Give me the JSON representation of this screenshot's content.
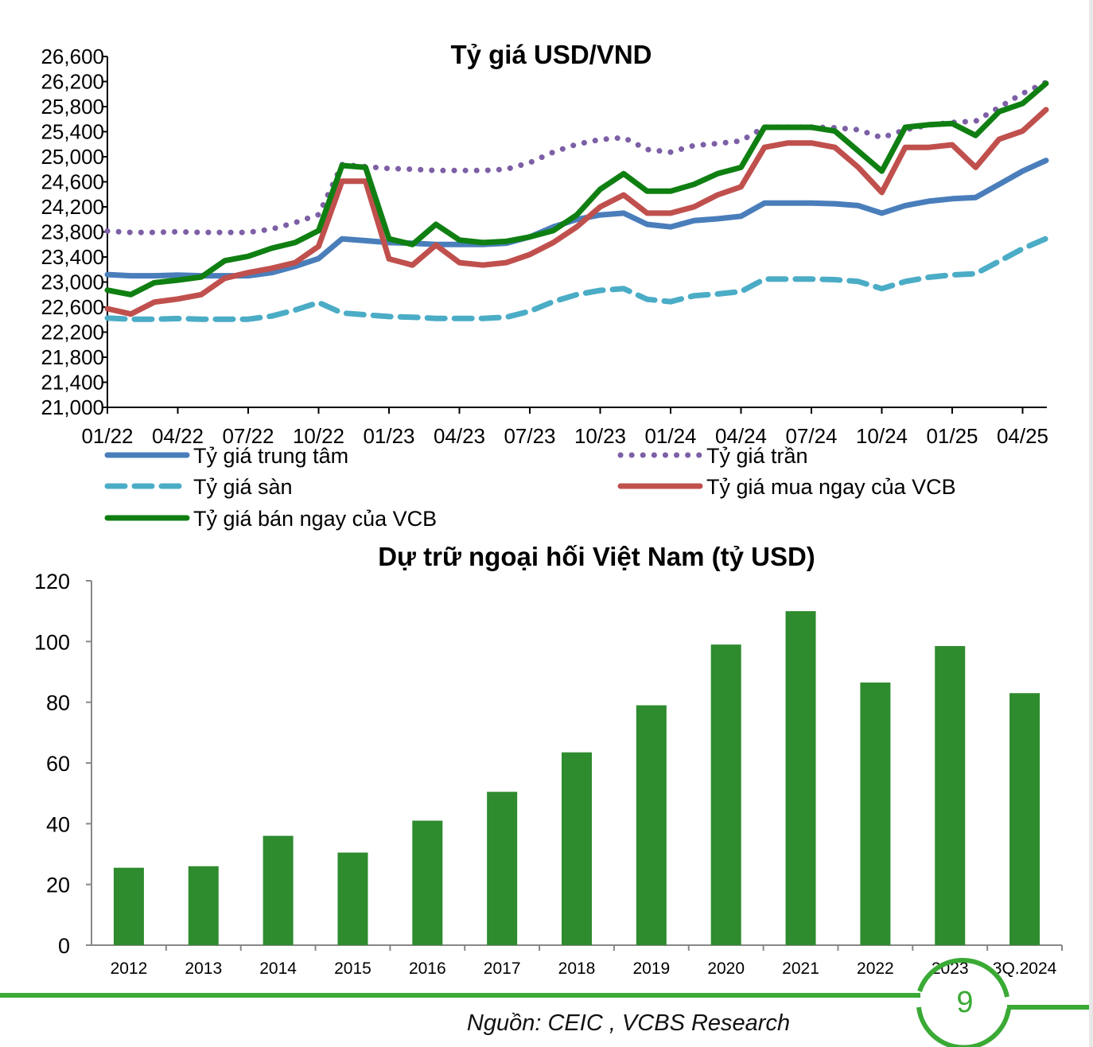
{
  "chart_data": [
    {
      "type": "line",
      "title": "Tỷ giá USD/VND",
      "ylim": [
        21000,
        26600
      ],
      "yticks": [
        "21,000",
        "21,400",
        "21,800",
        "22,200",
        "22,600",
        "23,000",
        "23,400",
        "23,800",
        "24,200",
        "24,600",
        "25,000",
        "25,400",
        "25,800",
        "26,200",
        "26,600"
      ],
      "xticks": [
        "01/22",
        "04/22",
        "07/22",
        "10/22",
        "01/23",
        "04/23",
        "07/23",
        "10/23",
        "01/24",
        "04/24",
        "07/24",
        "10/24",
        "01/25",
        "04/25"
      ],
      "x": [
        "01/22",
        "02/22",
        "03/22",
        "04/22",
        "05/22",
        "06/22",
        "07/22",
        "08/22",
        "09/22",
        "10/22",
        "11/22",
        "12/22",
        "01/23",
        "02/23",
        "03/23",
        "04/23",
        "05/23",
        "06/23",
        "07/23",
        "08/23",
        "09/23",
        "10/23",
        "11/23",
        "12/23",
        "01/24",
        "02/24",
        "03/24",
        "04/24",
        "05/24",
        "06/24",
        "07/24",
        "08/24",
        "09/24",
        "10/24",
        "11/24",
        "12/24",
        "01/25",
        "02/25",
        "03/25",
        "04/25",
        "05/25"
      ],
      "series": [
        {
          "name": "Tỷ giá trung tâm",
          "color": "#4a7ebb",
          "style": "solid",
          "values": [
            23120,
            23100,
            23100,
            23110,
            23100,
            23100,
            23100,
            23150,
            23250,
            23375,
            23690,
            23660,
            23630,
            23620,
            23600,
            23600,
            23600,
            23620,
            23720,
            23880,
            24000,
            24070,
            24100,
            23920,
            23880,
            23980,
            24010,
            24050,
            24260,
            24260,
            24260,
            24250,
            24220,
            24100,
            24220,
            24290,
            24330,
            24350,
            24560,
            24770,
            24940
          ]
        },
        {
          "name": "Tỷ giá trần",
          "color": "#7d5fa6",
          "style": "dotted",
          "values": [
            23814,
            23793,
            23793,
            23803,
            23793,
            23793,
            23793,
            23845,
            23948,
            24076,
            24875,
            24843,
            24812,
            24801,
            24780,
            24780,
            24780,
            24801,
            24906,
            25074,
            25200,
            25274,
            25305,
            25116,
            25074,
            25179,
            25211,
            25253,
            25473,
            25473,
            25473,
            25463,
            25431,
            25305,
            25431,
            25505,
            25547,
            25568,
            25788,
            26009,
            26187
          ]
        },
        {
          "name": "Tỷ giá sàn",
          "color": "#4bacc6",
          "style": "dashed",
          "values": [
            22426,
            22407,
            22407,
            22417,
            22407,
            22407,
            22407,
            22456,
            22553,
            22674,
            22506,
            22477,
            22449,
            22439,
            22420,
            22420,
            22420,
            22439,
            22534,
            22686,
            22800,
            22867,
            22895,
            22724,
            22686,
            22781,
            22810,
            22848,
            23047,
            23047,
            23047,
            23038,
            23009,
            22895,
            23009,
            23076,
            23114,
            23133,
            23332,
            23532,
            23693
          ]
        },
        {
          "name": "Tỷ giá mua ngay của VCB",
          "color": "#c0504d",
          "style": "solid",
          "values": [
            22575,
            22490,
            22680,
            22730,
            22800,
            23060,
            23150,
            23220,
            23310,
            23570,
            24610,
            24610,
            23370,
            23270,
            23590,
            23310,
            23270,
            23310,
            23440,
            23630,
            23880,
            24200,
            24390,
            24100,
            24100,
            24200,
            24390,
            24520,
            25150,
            25220,
            25220,
            25150,
            24830,
            24430,
            25150,
            25150,
            25190,
            24830,
            25280,
            25410,
            25750
          ]
        },
        {
          "name": "Tỷ giá bán ngay của VCB",
          "color": "#0f7f12",
          "style": "solid",
          "values": [
            22870,
            22800,
            22990,
            23030,
            23080,
            23340,
            23410,
            23540,
            23630,
            23820,
            24860,
            24830,
            23690,
            23600,
            23920,
            23670,
            23630,
            23650,
            23720,
            23820,
            24070,
            24480,
            24730,
            24450,
            24450,
            24560,
            24730,
            24830,
            25470,
            25470,
            25470,
            25410,
            25090,
            24770,
            25470,
            25510,
            25530,
            25340,
            25720,
            25850,
            26170
          ]
        }
      ],
      "legend": "bottom"
    },
    {
      "type": "bar",
      "title": "Dự trữ ngoại hối Việt Nam (tỷ USD)",
      "categories": [
        "2012",
        "2013",
        "2014",
        "2015",
        "2016",
        "2017",
        "2018",
        "2019",
        "2020",
        "2021",
        "2022",
        "2023",
        "3Q.2024"
      ],
      "values": [
        25.5,
        26,
        36,
        30.5,
        41,
        50.5,
        63.5,
        79,
        99,
        110,
        86.5,
        98.5,
        83
      ],
      "ylim": [
        0,
        120
      ],
      "yticks": [
        "0",
        "20",
        "40",
        "60",
        "80",
        "100",
        "120"
      ],
      "color": "#2e8b2e"
    }
  ],
  "footer": {
    "page_number": "9",
    "source": "Nguồn: CEIC , VCBS Research",
    "accent": "#3aaa35"
  }
}
